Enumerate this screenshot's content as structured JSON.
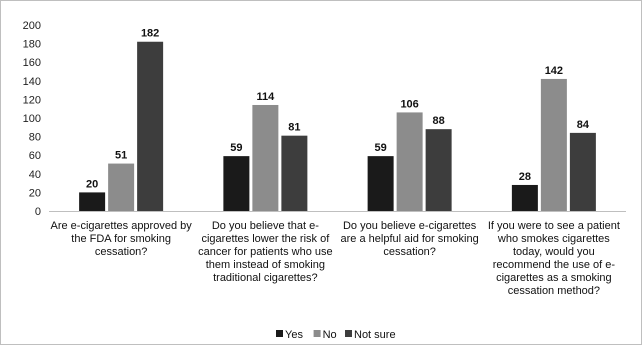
{
  "chart_data": {
    "type": "bar",
    "categories": [
      "Are e-cigarettes approved by the FDA for smoking cessation?",
      "Do you believe that e-cigarettes lower the risk of cancer for patients who use them instead of smoking traditional cigarettes?",
      "Do you believe e-cigarettes are a helpful aid for smoking cessation?",
      "If you were to see a patient who smokes cigarettes today, would you recommend the use of e-cigarettes as a smoking cessation method?"
    ],
    "category_lines": [
      [
        "Are e-cigarettes approved by",
        "the FDA for smoking",
        "cessation?"
      ],
      [
        "Do you believe that e-",
        "cigarettes lower the risk of",
        "cancer for patients who use",
        "them instead of smoking",
        "traditional cigarettes?"
      ],
      [
        "Do you believe e-cigarettes",
        "are a helpful aid for smoking",
        "cessation?"
      ],
      [
        "If you were to see a patient",
        "who smokes cigarettes",
        "today, would you",
        "recommend the use of e-",
        "cigarettes as a smoking",
        "cessation method?"
      ]
    ],
    "series": [
      {
        "name": "Yes",
        "values": [
          20,
          59,
          59,
          28
        ],
        "color": "#1a1a1a"
      },
      {
        "name": "No",
        "values": [
          51,
          114,
          106,
          142
        ],
        "color": "#8c8c8c"
      },
      {
        "name": "Not sure",
        "values": [
          182,
          81,
          88,
          84
        ],
        "color": "#3d3d3d"
      }
    ],
    "ylim": [
      0,
      200
    ],
    "yticks": [
      0,
      20,
      40,
      60,
      80,
      100,
      120,
      140,
      160,
      180,
      200
    ],
    "grid": false,
    "legend": "bottom-center"
  }
}
